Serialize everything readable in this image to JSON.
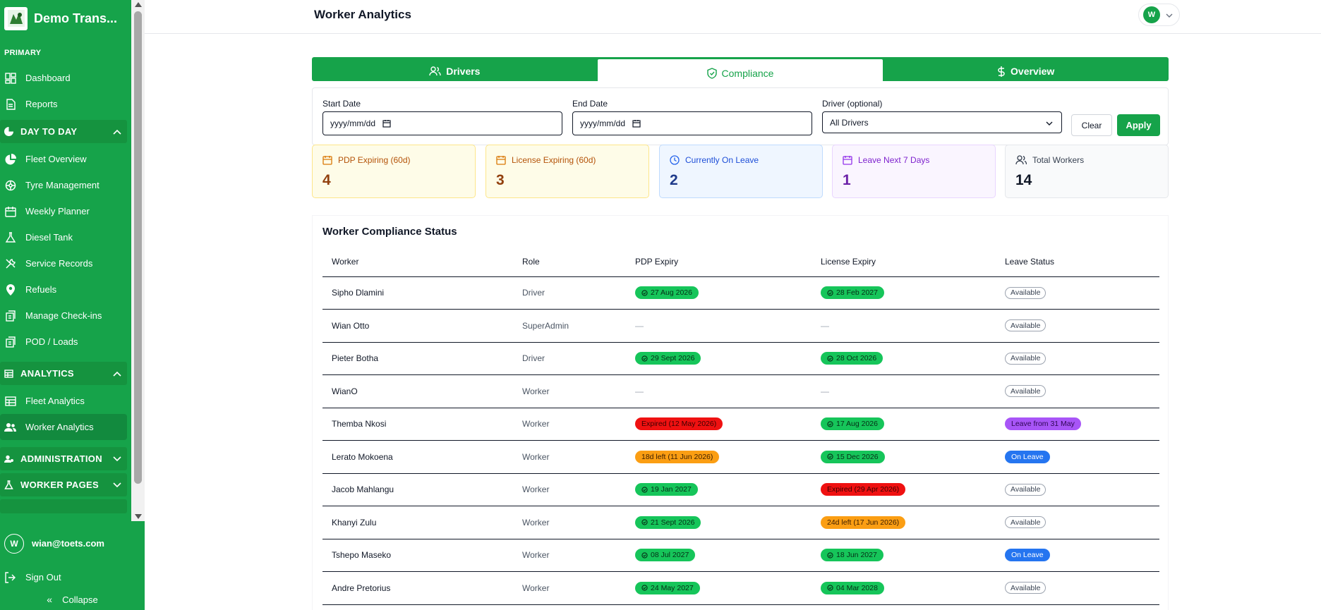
{
  "sidebar": {
    "brand": "Demo Trans...",
    "primary_label": "PRIMARY",
    "primary_items": [
      {
        "label": "Dashboard",
        "icon": "dashboard-icon"
      },
      {
        "label": "Reports",
        "icon": "reports-icon"
      }
    ],
    "day_to_day": {
      "label": "DAY TO DAY",
      "items": [
        {
          "label": "Fleet Overview"
        },
        {
          "label": "Tyre Management"
        },
        {
          "label": "Weekly Planner"
        },
        {
          "label": "Diesel Tank"
        },
        {
          "label": "Service Records"
        },
        {
          "label": "Refuels"
        },
        {
          "label": "Manage Check-ins"
        },
        {
          "label": "POD / Loads"
        }
      ]
    },
    "analytics": {
      "label": "ANALYTICS",
      "items": [
        {
          "label": "Fleet Analytics"
        },
        {
          "label": "Worker Analytics"
        }
      ]
    },
    "administration_label": "ADMINISTRATION",
    "worker_pages_label": "WORKER PAGES",
    "footer": {
      "avatar_initial": "W",
      "email": "wian@toets.com",
      "sign_out": "Sign Out",
      "collapse": "Collapse"
    }
  },
  "header": {
    "title": "Worker Analytics",
    "user_initial": "W"
  },
  "tabs": [
    {
      "label": "Drivers"
    },
    {
      "label": "Compliance"
    },
    {
      "label": "Overview"
    }
  ],
  "filters": {
    "start_label": "Start Date",
    "start_value": "yyyy/mm/dd",
    "end_label": "End Date",
    "end_value": "yyyy/mm/dd",
    "driver_label": "Driver (optional)",
    "driver_value": "All Drivers",
    "clear": "Clear",
    "apply": "Apply"
  },
  "stats": [
    {
      "label": "PDP Expiring (60d)",
      "value": "4"
    },
    {
      "label": "License Expiring (60d)",
      "value": "3"
    },
    {
      "label": "Currently On Leave",
      "value": "2"
    },
    {
      "label": "Leave Next 7 Days",
      "value": "1"
    },
    {
      "label": "Total Workers",
      "value": "14"
    }
  ],
  "table": {
    "title": "Worker Compliance Status",
    "headers": [
      "Worker",
      "Role",
      "PDP Expiry",
      "License Expiry",
      "Leave Status"
    ],
    "rows": [
      {
        "worker": "Sipho Dlamini",
        "role": "Driver",
        "pdp": "27 Aug 2026",
        "license": "28 Feb 2027",
        "leave": "Available"
      },
      {
        "worker": "Wian Otto",
        "role": "SuperAdmin",
        "pdp": "—",
        "license": "—",
        "leave": "Available"
      },
      {
        "worker": "Pieter Botha",
        "role": "Driver",
        "pdp": "29 Sept 2026",
        "license": "28 Oct 2026",
        "leave": "Available"
      },
      {
        "worker": "WianO",
        "role": "Worker",
        "pdp": "—",
        "license": "—",
        "leave": "Available"
      },
      {
        "worker": "Themba Nkosi",
        "role": "Worker",
        "pdp": "Expired (12 May 2026)",
        "license": "17 Aug 2026",
        "leave": "Leave from 31 May"
      },
      {
        "worker": "Lerato Mokoena",
        "role": "Worker",
        "pdp": "18d left (11 Jun 2026)",
        "license": "15 Dec 2026",
        "leave": "On Leave"
      },
      {
        "worker": "Jacob Mahlangu",
        "role": "Worker",
        "pdp": "19 Jan 2027",
        "license": "Expired (29 Apr 2026)",
        "leave": "Available"
      },
      {
        "worker": "Khanyi Zulu",
        "role": "Worker",
        "pdp": "21 Sept 2026",
        "license": "24d left (17 Jun 2026)",
        "leave": "Available"
      },
      {
        "worker": "Tshepo Maseko",
        "role": "Worker",
        "pdp": "08 Jul 2027",
        "license": "18 Jun 2027",
        "leave": "On Leave"
      },
      {
        "worker": "Andre Pretorius",
        "role": "Worker",
        "pdp": "24 May 2027",
        "license": "04 Mar 2028",
        "leave": "Available"
      }
    ]
  }
}
